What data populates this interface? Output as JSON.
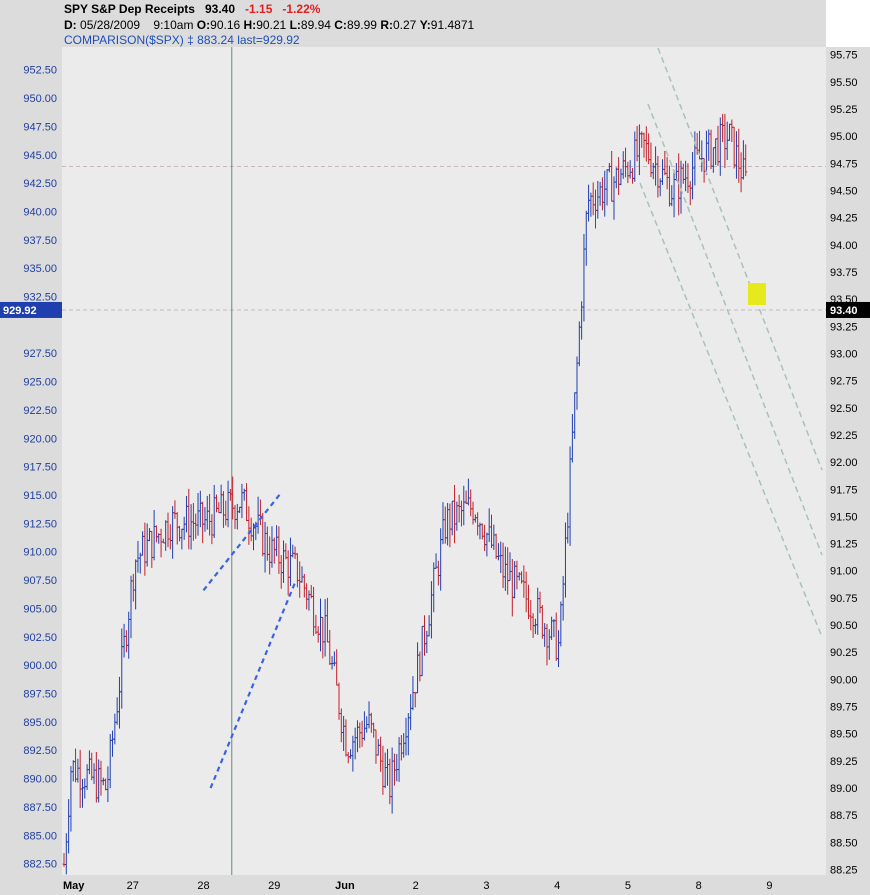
{
  "header": {
    "symbol": "SPY",
    "name": "S&P Dep Receipts",
    "last": "93.40",
    "change": "-1.15",
    "change_pct": "-1.22%",
    "d_label": "D:",
    "date": "05/28/2009",
    "time": "9:10am",
    "o_label": "O:",
    "open": "90.16",
    "h_label": "H:",
    "high": "90.21",
    "l_label": "L:",
    "low": "89.94",
    "c_label": "C:",
    "close": "89.99",
    "r_label": "R:",
    "range": "0.27",
    "y_label": "Y:",
    "y_value": "91.4871",
    "comparison_label": "COMPARISON($SPX)",
    "comparison_marker": "‡",
    "comparison_value": "883.24",
    "comparison_last": "last=929.92"
  },
  "colors": {
    "up_bar": "#1f3fae",
    "down_bar": "#c0202a",
    "channel": "#a9c2b8",
    "wedge": "#3a63e0",
    "hline": "#c7b7bf",
    "highlight": "#e6ea1c",
    "plot_bg": "#ebebeb",
    "panel_bg": "#dcdcdc"
  },
  "chart_data": {
    "type": "ohlc-bars",
    "x_labels": [
      "May",
      "27",
      "28",
      "29",
      "Jun",
      "2",
      "3",
      "4",
      "5",
      "8",
      "9"
    ],
    "left_axis": {
      "series": "$SPX",
      "ticks": [
        "952.50",
        "950.00",
        "947.50",
        "945.00",
        "942.50",
        "940.00",
        "937.50",
        "935.00",
        "932.50",
        "927.50",
        "925.00",
        "922.50",
        "920.00",
        "917.50",
        "915.00",
        "912.50",
        "910.00",
        "907.50",
        "905.00",
        "902.50",
        "900.00",
        "897.50",
        "895.00",
        "892.50",
        "890.00",
        "887.50",
        "885.00",
        "882.50"
      ],
      "range": [
        881.5,
        954.5
      ],
      "last_label": "929.92"
    },
    "right_axis": {
      "series": "SPY",
      "ticks": [
        "95.75",
        "95.50",
        "95.25",
        "95.00",
        "94.75",
        "94.50",
        "94.25",
        "94.00",
        "93.75",
        "93.50",
        "93.25",
        "93.00",
        "92.75",
        "92.50",
        "92.25",
        "92.00",
        "91.75",
        "91.50",
        "91.25",
        "91.00",
        "90.75",
        "90.50",
        "90.25",
        "90.00",
        "89.75",
        "89.50",
        "89.25",
        "89.00",
        "88.75",
        "88.50",
        "88.25"
      ],
      "range": [
        88.2,
        95.82
      ],
      "last_label": "93.40"
    },
    "series": [
      {
        "name": "SPY",
        "path_x": [
          0,
          0.1,
          0.6,
          1.0,
          1.5,
          2.0,
          2.5,
          2.9,
          3.3,
          3.7,
          4.0,
          4.3,
          4.6,
          5.0,
          5.4,
          5.8,
          6.2,
          6.6,
          7.0,
          7.4,
          7.8,
          8.2,
          8.6,
          9.0,
          9.4,
          9.8
        ],
        "path_close": [
          88.3,
          89.2,
          89.0,
          91.1,
          91.45,
          91.45,
          91.65,
          91.2,
          91.0,
          90.4,
          89.4,
          89.6,
          89.0,
          90.1,
          91.45,
          91.6,
          91.0,
          90.7,
          90.3,
          94.4,
          94.6,
          94.9,
          94.5,
          94.8,
          95.0,
          94.3
        ],
        "note": "sketch"
      }
    ]
  }
}
